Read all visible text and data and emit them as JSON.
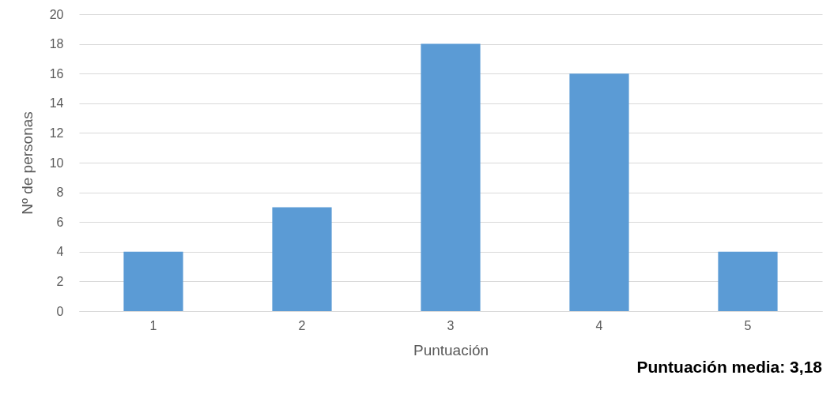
{
  "chart_data": {
    "type": "bar",
    "categories": [
      "1",
      "2",
      "3",
      "4",
      "5"
    ],
    "values": [
      4,
      7,
      18,
      16,
      4
    ],
    "color": "#5b9bd5",
    "xlabel": "Puntuación",
    "ylabel": "Nº de personas",
    "ylim": [
      0,
      20
    ],
    "yticks": [
      0,
      2,
      4,
      6,
      8,
      10,
      12,
      14,
      16,
      18,
      20
    ],
    "grid": "y",
    "annotations": [
      "Puntuación media: 3,18"
    ]
  }
}
